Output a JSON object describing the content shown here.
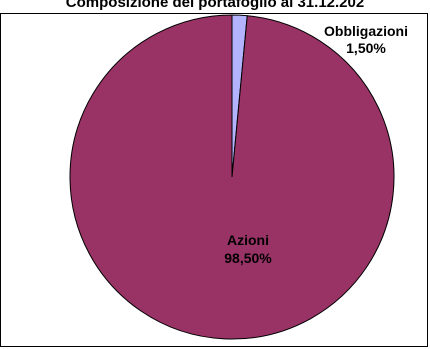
{
  "chart_data": {
    "type": "pie",
    "title": "Composizione del portafoglio al 31.12.202",
    "slices": [
      {
        "label": "Obbligazioni",
        "value_label": "1,50%",
        "value": 1.5,
        "color": "#b3b3ff"
      },
      {
        "label": "Azioni",
        "value_label": "98,50%",
        "value": 98.5,
        "color": "#993366"
      }
    ],
    "start_angle_deg": 0,
    "direction": "clockwise",
    "outline_color": "#000000",
    "legend": "none"
  }
}
